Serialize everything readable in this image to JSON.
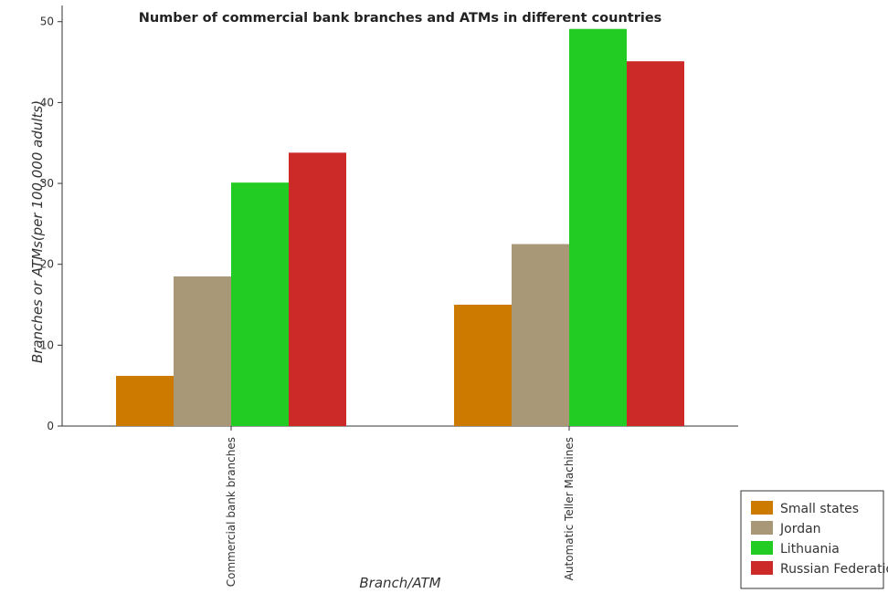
{
  "chart_data": {
    "type": "bar",
    "title": "Number of commercial bank branches and ATMs in different countries",
    "xlabel": "Branch/ATM",
    "ylabel": "Branches or ATMs(per 100,000 adults)",
    "categories": [
      "Commercial bank branches",
      "Automatic Teller Machines"
    ],
    "ylim": [
      0,
      52
    ],
    "yticks": [
      0,
      10,
      20,
      30,
      40,
      50
    ],
    "grid": false,
    "legend_position": "bottom-right",
    "series": [
      {
        "name": "Small states",
        "color": "#cc7a00",
        "values": [
          6.2,
          15.0
        ]
      },
      {
        "name": "Jordan",
        "color": "#a89878",
        "values": [
          18.5,
          22.5
        ]
      },
      {
        "name": "Lithuania",
        "color": "#22cc22",
        "values": [
          30.1,
          49.1
        ]
      },
      {
        "name": "Russian Federation",
        "color": "#cc2929",
        "values": [
          33.8,
          45.1
        ]
      }
    ]
  }
}
